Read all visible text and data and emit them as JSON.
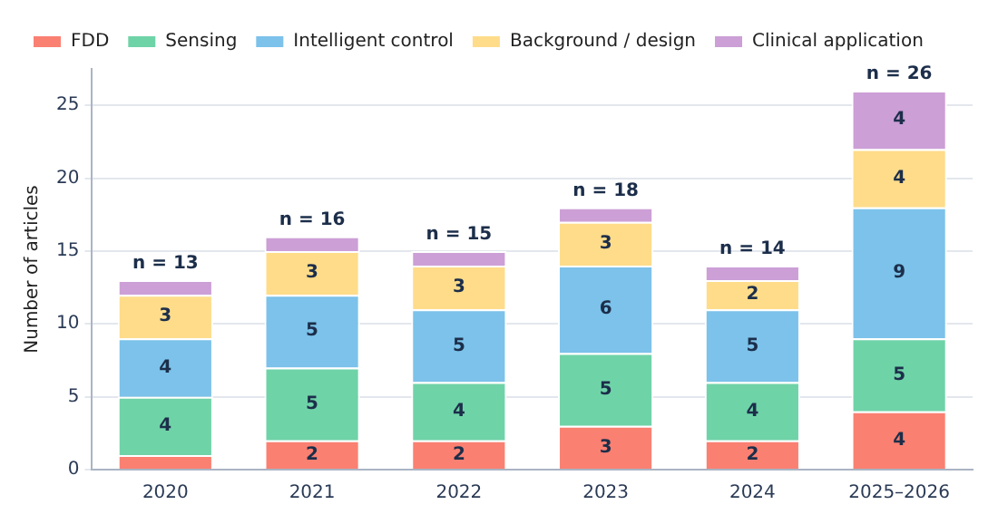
{
  "chart_data": {
    "type": "bar",
    "stacked": true,
    "ylabel": "Number of articles",
    "categories": [
      "2020",
      "2021",
      "2022",
      "2023",
      "2024",
      "2025–2026"
    ],
    "series": [
      {
        "name": "FDD",
        "color": "#fa8072",
        "values": [
          1,
          2,
          2,
          3,
          2,
          4
        ],
        "value_labels": [
          null,
          "2",
          "2",
          "3",
          "2",
          "4"
        ]
      },
      {
        "name": "Sensing",
        "color": "#6fd3a8",
        "values": [
          4,
          5,
          4,
          5,
          4,
          5
        ],
        "value_labels": [
          "4",
          "5",
          "4",
          "5",
          "4",
          "5"
        ]
      },
      {
        "name": "Intelligent control",
        "color": "#7cc2ea",
        "values": [
          4,
          5,
          5,
          6,
          5,
          9
        ],
        "value_labels": [
          "4",
          "5",
          "5",
          "6",
          "5",
          "9"
        ]
      },
      {
        "name": "Background / design",
        "color": "#fedc8a",
        "values": [
          3,
          3,
          3,
          3,
          2,
          4
        ],
        "value_labels": [
          "3",
          "3",
          "3",
          "3",
          "2",
          "4"
        ]
      },
      {
        "name": "Clinical application",
        "color": "#cc9fd6",
        "values": [
          1,
          1,
          1,
          1,
          1,
          4
        ],
        "value_labels": [
          null,
          null,
          null,
          null,
          null,
          "4"
        ]
      }
    ],
    "totals": [
      "n = 13",
      "n = 16",
      "n = 15",
      "n = 18",
      "n = 14",
      "n = 26"
    ],
    "ylim": [
      0,
      27.5
    ],
    "yticks": [
      0,
      5,
      10,
      15,
      20,
      25
    ],
    "grid": "y",
    "legend": "top left"
  }
}
